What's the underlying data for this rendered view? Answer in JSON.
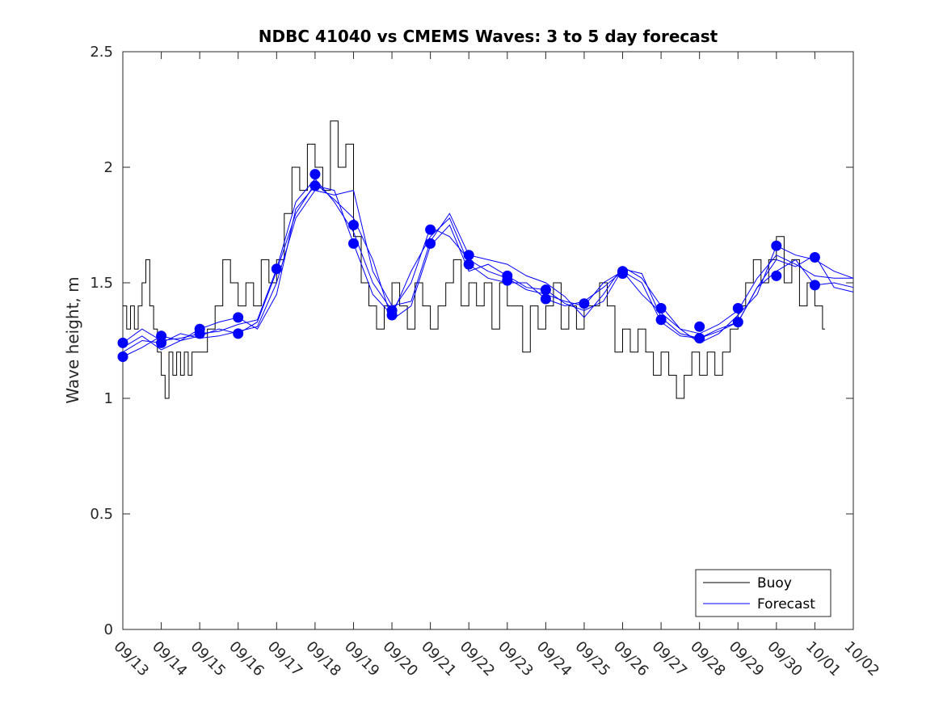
{
  "chart_data": {
    "type": "line",
    "title": "NDBC 41040 vs CMEMS Waves: 3 to 5 day forecast",
    "xlabel": "",
    "ylabel": "Wave height, m",
    "x_tick_labels": [
      "09/13",
      "09/14",
      "09/15",
      "09/16",
      "09/17",
      "09/18",
      "09/19",
      "09/20",
      "09/21",
      "09/22",
      "09/23",
      "09/24",
      "09/25",
      "09/26",
      "09/27",
      "09/28",
      "09/29",
      "09/30",
      "10/01",
      "10/02"
    ],
    "xlim_days": [
      0,
      19
    ],
    "ylim": [
      0,
      2.5
    ],
    "y_ticks": [
      0,
      0.5,
      1,
      1.5,
      2,
      2.5
    ],
    "y_tick_labels": [
      "0",
      "0.5",
      "1",
      "1.5",
      "2",
      "2.5"
    ],
    "grid": false,
    "legend": {
      "position": "bottom-right",
      "entries": [
        "Buoy",
        "Forecast"
      ]
    },
    "colors": {
      "buoy": "#000000",
      "forecast": "#0000ff",
      "axis": "#262626"
    },
    "series": [
      {
        "name": "Buoy",
        "x": [
          0.0,
          0.1,
          0.2,
          0.3,
          0.4,
          0.5,
          0.6,
          0.7,
          0.8,
          0.9,
          1.0,
          1.1,
          1.2,
          1.3,
          1.4,
          1.5,
          1.6,
          1.7,
          1.8,
          2.0,
          2.2,
          2.4,
          2.6,
          2.8,
          3.0,
          3.2,
          3.4,
          3.6,
          3.8,
          4.0,
          4.2,
          4.4,
          4.6,
          4.8,
          5.0,
          5.2,
          5.4,
          5.6,
          5.8,
          6.0,
          6.2,
          6.4,
          6.6,
          6.8,
          7.0,
          7.2,
          7.4,
          7.6,
          7.8,
          8.0,
          8.2,
          8.4,
          8.6,
          8.8,
          9.0,
          9.2,
          9.4,
          9.6,
          9.8,
          10.0,
          10.2,
          10.4,
          10.6,
          10.8,
          11.0,
          11.2,
          11.4,
          11.6,
          11.8,
          12.0,
          12.2,
          12.4,
          12.6,
          12.8,
          13.0,
          13.2,
          13.4,
          13.6,
          13.8,
          14.0,
          14.2,
          14.4,
          14.6,
          14.8,
          15.0,
          15.2,
          15.4,
          15.6,
          15.8,
          16.0,
          16.2,
          16.4,
          16.6,
          16.8,
          17.0,
          17.2,
          17.4,
          17.6,
          17.8,
          18.0,
          18.2
        ],
        "values": [
          1.4,
          1.3,
          1.4,
          1.3,
          1.4,
          1.5,
          1.6,
          1.4,
          1.3,
          1.2,
          1.1,
          1.0,
          1.2,
          1.1,
          1.2,
          1.1,
          1.2,
          1.1,
          1.2,
          1.2,
          1.3,
          1.4,
          1.6,
          1.5,
          1.4,
          1.5,
          1.4,
          1.6,
          1.5,
          1.6,
          1.8,
          2.0,
          1.9,
          2.1,
          2.0,
          1.9,
          2.2,
          2.0,
          2.1,
          1.7,
          1.5,
          1.4,
          1.3,
          1.4,
          1.5,
          1.4,
          1.3,
          1.5,
          1.4,
          1.3,
          1.4,
          1.5,
          1.6,
          1.4,
          1.5,
          1.4,
          1.5,
          1.3,
          1.5,
          1.4,
          1.4,
          1.2,
          1.4,
          1.3,
          1.4,
          1.5,
          1.3,
          1.4,
          1.3,
          1.4,
          1.4,
          1.5,
          1.4,
          1.2,
          1.3,
          1.2,
          1.3,
          1.2,
          1.1,
          1.2,
          1.1,
          1.0,
          1.1,
          1.2,
          1.1,
          1.2,
          1.1,
          1.2,
          1.3,
          1.4,
          1.5,
          1.6,
          1.5,
          1.6,
          1.7,
          1.5,
          1.6,
          1.4,
          1.5,
          1.4,
          1.3
        ]
      },
      {
        "name": "Forecast",
        "x": [
          0,
          0.5,
          1,
          1.5,
          2,
          2.5,
          3,
          3.5,
          4,
          4.5,
          5,
          5.5,
          6,
          6.5,
          7,
          7.5,
          8,
          8.5,
          9,
          9.5,
          10,
          10.5,
          11,
          11.5,
          12,
          12.5,
          13,
          13.5,
          14,
          14.5,
          15,
          15.5,
          16,
          16.5,
          17,
          17.5,
          18,
          18.5,
          19
        ],
        "values": [
          1.24,
          1.3,
          1.25,
          1.26,
          1.28,
          1.29,
          1.32,
          1.34,
          1.56,
          1.85,
          1.95,
          1.85,
          1.72,
          1.5,
          1.38,
          1.5,
          1.74,
          1.7,
          1.6,
          1.55,
          1.52,
          1.47,
          1.45,
          1.42,
          1.4,
          1.5,
          1.55,
          1.45,
          1.37,
          1.3,
          1.28,
          1.32,
          1.38,
          1.52,
          1.62,
          1.58,
          1.53,
          1.52,
          1.52
        ]
      },
      {
        "name": "Forecast",
        "x": [
          0,
          0.5,
          1,
          1.5,
          2,
          2.5,
          3,
          3.5,
          4,
          4.5,
          5,
          5.5,
          6,
          6.5,
          7,
          7.5,
          8,
          8.5,
          9,
          9.5,
          10,
          10.5,
          11,
          11.5,
          12,
          12.5,
          13,
          13.5,
          14,
          14.5,
          15,
          15.5,
          16,
          16.5,
          17,
          17.5,
          18,
          18.5,
          19
        ],
        "values": [
          1.18,
          1.22,
          1.27,
          1.25,
          1.3,
          1.33,
          1.35,
          1.3,
          1.45,
          1.82,
          1.92,
          1.9,
          1.67,
          1.45,
          1.36,
          1.55,
          1.7,
          1.78,
          1.58,
          1.52,
          1.5,
          1.5,
          1.43,
          1.4,
          1.42,
          1.48,
          1.55,
          1.5,
          1.33,
          1.27,
          1.26,
          1.3,
          1.33,
          1.48,
          1.55,
          1.6,
          1.49,
          1.5,
          1.48
        ]
      },
      {
        "name": "Forecast",
        "x": [
          0,
          0.5,
          1,
          1.5,
          2,
          2.5,
          3,
          3.5,
          4,
          4.5,
          5,
          5.5,
          6,
          6.5,
          7,
          7.5,
          8,
          8.5,
          9,
          9.5,
          10,
          10.5,
          11,
          11.5,
          12,
          12.5,
          13,
          13.5,
          14,
          14.5,
          15,
          15.5,
          16,
          16.5,
          17,
          17.5,
          18,
          18.5,
          19
        ],
        "values": [
          1.2,
          1.25,
          1.24,
          1.28,
          1.26,
          1.27,
          1.29,
          1.31,
          1.5,
          1.78,
          1.9,
          1.88,
          1.9,
          1.55,
          1.4,
          1.42,
          1.68,
          1.8,
          1.62,
          1.6,
          1.58,
          1.53,
          1.5,
          1.44,
          1.35,
          1.45,
          1.57,
          1.52,
          1.4,
          1.3,
          1.24,
          1.28,
          1.36,
          1.45,
          1.66,
          1.62,
          1.6,
          1.55,
          1.52
        ]
      },
      {
        "name": "Forecast",
        "x": [
          0,
          0.5,
          1,
          1.5,
          2,
          2.5,
          3,
          3.5,
          4,
          4.5,
          5,
          5.5,
          6,
          6.5,
          7,
          7.5,
          8,
          8.5,
          9,
          9.5,
          10,
          10.5,
          11,
          11.5,
          12,
          12.5,
          13,
          13.5,
          14,
          14.5,
          15,
          15.5,
          16,
          16.5,
          17,
          17.5,
          18,
          18.5,
          19
        ],
        "values": [
          1.22,
          1.27,
          1.21,
          1.25,
          1.27,
          1.3,
          1.28,
          1.33,
          1.55,
          1.8,
          1.93,
          1.86,
          1.78,
          1.6,
          1.34,
          1.4,
          1.66,
          1.75,
          1.55,
          1.58,
          1.53,
          1.48,
          1.47,
          1.41,
          1.38,
          1.42,
          1.56,
          1.54,
          1.35,
          1.28,
          1.26,
          1.29,
          1.33,
          1.48,
          1.6,
          1.57,
          1.62,
          1.48,
          1.46
        ]
      }
    ],
    "markers": {
      "name": "Forecast",
      "x": [
        0,
        0,
        1,
        1,
        2,
        2,
        3,
        3,
        4,
        5,
        5,
        6,
        6,
        7,
        7,
        8,
        8,
        9,
        9,
        10,
        10,
        11,
        11,
        12,
        13,
        13,
        14,
        14,
        15,
        15,
        16,
        16,
        17,
        17,
        18,
        18
      ],
      "values": [
        1.24,
        1.18,
        1.27,
        1.24,
        1.3,
        1.28,
        1.35,
        1.28,
        1.56,
        1.97,
        1.92,
        1.75,
        1.67,
        1.38,
        1.36,
        1.73,
        1.67,
        1.62,
        1.58,
        1.53,
        1.51,
        1.47,
        1.43,
        1.41,
        1.55,
        1.54,
        1.39,
        1.34,
        1.31,
        1.26,
        1.39,
        1.33,
        1.66,
        1.53,
        1.61,
        1.49
      ]
    }
  }
}
